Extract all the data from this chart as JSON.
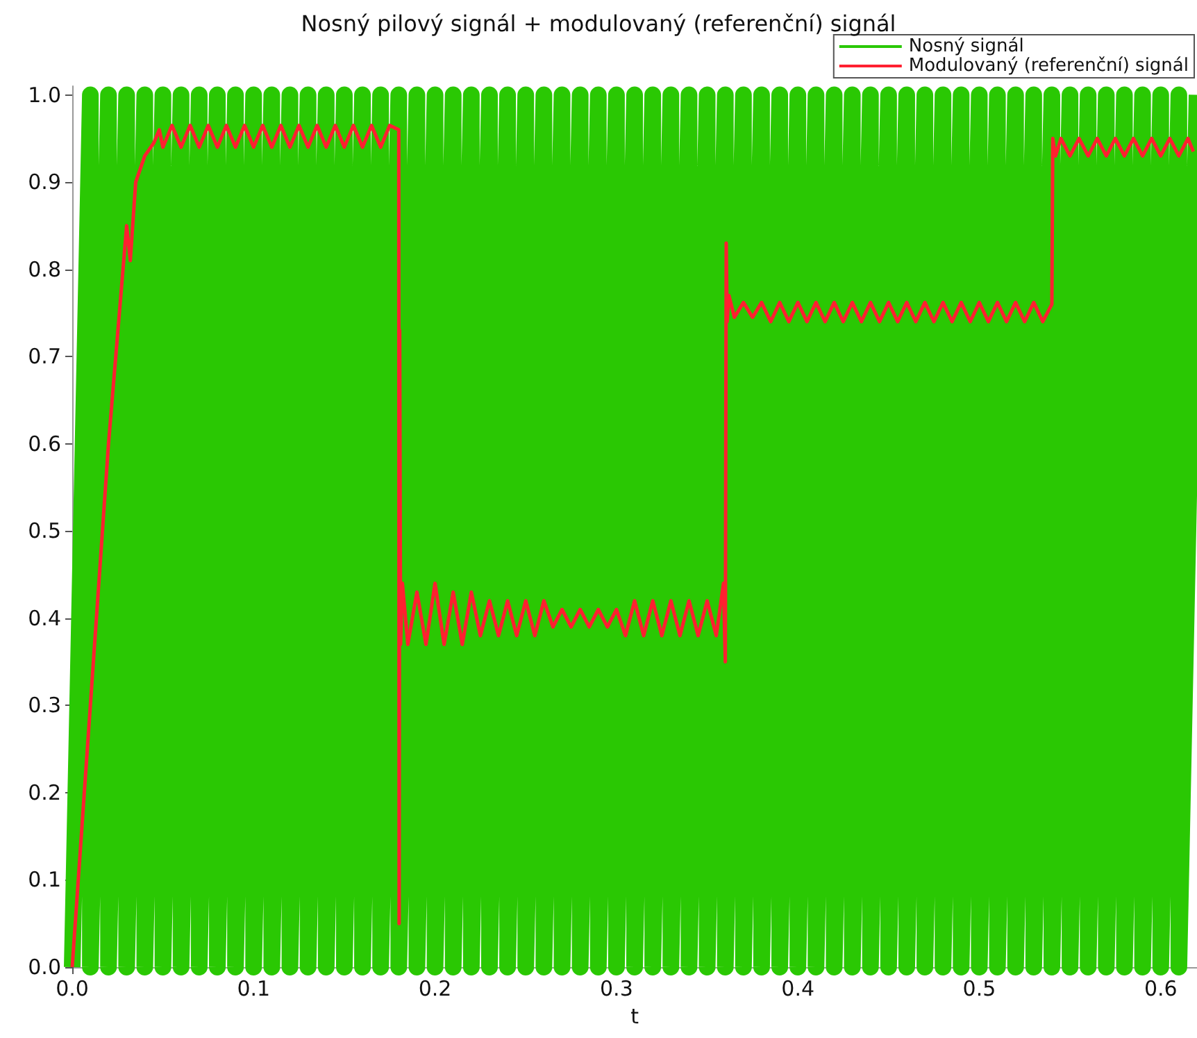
{
  "chart_data": {
    "type": "line",
    "title": "Nosný pilový signál + modulovaný (referenční) signál",
    "xlabel": "t",
    "xlim": [
      0,
      0.62
    ],
    "xticks": [
      {
        "value": 0,
        "label": "0.0"
      },
      0.1,
      0.2,
      0.3,
      0.4,
      0.5,
      0.6
    ],
    "ylim": [
      0,
      1.01
    ],
    "yticks": [
      {
        "value": 0,
        "label": "0.0"
      },
      0.1,
      0.2,
      0.3,
      0.4,
      0.5,
      0.6,
      0.7,
      0.8,
      0.9,
      {
        "value": 1,
        "label": "1.0"
      }
    ],
    "legend": "top right",
    "grid": false,
    "marker": "none",
    "line_style": "solid",
    "series": [
      {
        "name": "Nosný signál",
        "color": "#2ac803",
        "x": [
          0,
          0.01,
          0.01,
          0.02,
          0.02,
          0.03,
          0.03,
          0.04,
          0.04,
          0.05,
          0.05,
          0.06,
          0.06,
          0.07,
          0.07,
          0.08,
          0.08,
          0.09,
          0.09,
          0.1,
          0.1,
          0.11,
          0.11,
          0.12,
          0.12,
          0.13,
          0.13,
          0.14,
          0.14,
          0.15,
          0.15,
          0.16,
          0.16,
          0.17,
          0.17,
          0.18,
          0.18,
          0.19,
          0.19,
          0.2,
          0.2,
          0.21,
          0.21,
          0.22,
          0.22,
          0.23,
          0.23,
          0.24,
          0.24,
          0.25,
          0.25,
          0.26,
          0.26,
          0.27,
          0.27,
          0.28,
          0.28,
          0.29,
          0.29,
          0.3,
          0.3,
          0.31,
          0.31,
          0.32,
          0.32,
          0.33,
          0.33,
          0.34,
          0.34,
          0.35,
          0.35,
          0.36,
          0.36,
          0.37,
          0.37,
          0.38,
          0.38,
          0.39,
          0.39,
          0.4,
          0.4,
          0.41,
          0.41,
          0.42,
          0.42,
          0.43,
          0.43,
          0.44,
          0.44,
          0.45,
          0.45,
          0.46,
          0.46,
          0.47,
          0.47,
          0.48,
          0.48,
          0.49,
          0.49,
          0.5,
          0.5,
          0.51,
          0.51,
          0.52,
          0.52,
          0.53,
          0.53,
          0.54,
          0.54,
          0.55,
          0.55,
          0.56,
          0.56,
          0.57,
          0.57,
          0.58,
          0.58,
          0.59,
          0.59,
          0.6,
          0.6,
          0.61,
          0.61,
          0.62
        ],
        "values": [
          0,
          1,
          0,
          1,
          0,
          1,
          0,
          1,
          0,
          1,
          0,
          1,
          0,
          1,
          0,
          1,
          0,
          1,
          0,
          1,
          0,
          1,
          0,
          1,
          0,
          1,
          0,
          1,
          0,
          1,
          0,
          1,
          0,
          1,
          0,
          1,
          0,
          1,
          0,
          1,
          0,
          1,
          0,
          1,
          0,
          1,
          0,
          1,
          0,
          1,
          0,
          1,
          0,
          1,
          0,
          1,
          0,
          1,
          0,
          1,
          0,
          1,
          0,
          1,
          0,
          1,
          0,
          1,
          0,
          1,
          0,
          1,
          0,
          1,
          0,
          1,
          0,
          1,
          0,
          1,
          0,
          1,
          0,
          1,
          0,
          1,
          0,
          1,
          0,
          1,
          0,
          1,
          0,
          1,
          0,
          1,
          0,
          1,
          0,
          1,
          0,
          1,
          0,
          1,
          0,
          1,
          0,
          1,
          0,
          1,
          0,
          1,
          0,
          1,
          0,
          1,
          0,
          1,
          0,
          1,
          0,
          1,
          0,
          1
        ]
      },
      {
        "name": "Modulovaný (referenční) signál",
        "color": "#ff2030",
        "x": [
          0,
          0.01,
          0.02,
          0.03,
          0.032,
          0.035,
          0.04,
          0.045,
          0.048,
          0.05,
          0.055,
          0.06,
          0.065,
          0.07,
          0.075,
          0.08,
          0.085,
          0.09,
          0.095,
          0.1,
          0.105,
          0.11,
          0.115,
          0.12,
          0.125,
          0.13,
          0.135,
          0.14,
          0.145,
          0.15,
          0.155,
          0.16,
          0.165,
          0.17,
          0.175,
          0.18,
          0.1802,
          0.1805,
          0.181,
          0.182,
          0.185,
          0.19,
          0.195,
          0.2,
          0.205,
          0.21,
          0.215,
          0.22,
          0.225,
          0.23,
          0.235,
          0.24,
          0.245,
          0.25,
          0.255,
          0.26,
          0.265,
          0.27,
          0.275,
          0.28,
          0.285,
          0.29,
          0.295,
          0.3,
          0.305,
          0.31,
          0.315,
          0.32,
          0.325,
          0.33,
          0.335,
          0.34,
          0.345,
          0.35,
          0.355,
          0.359,
          0.36,
          0.3605,
          0.361,
          0.362,
          0.365,
          0.37,
          0.375,
          0.38,
          0.385,
          0.39,
          0.395,
          0.4,
          0.405,
          0.41,
          0.415,
          0.42,
          0.425,
          0.43,
          0.435,
          0.44,
          0.445,
          0.45,
          0.455,
          0.46,
          0.465,
          0.47,
          0.475,
          0.48,
          0.485,
          0.49,
          0.495,
          0.5,
          0.505,
          0.51,
          0.515,
          0.52,
          0.525,
          0.53,
          0.535,
          0.54,
          0.5405,
          0.542,
          0.545,
          0.55,
          0.555,
          0.56,
          0.565,
          0.57,
          0.575,
          0.58,
          0.585,
          0.59,
          0.595,
          0.6,
          0.605,
          0.61,
          0.615,
          0.618
        ],
        "values": [
          0,
          0.3,
          0.6,
          0.85,
          0.81,
          0.9,
          0.93,
          0.945,
          0.96,
          0.94,
          0.965,
          0.94,
          0.965,
          0.94,
          0.965,
          0.94,
          0.965,
          0.94,
          0.965,
          0.94,
          0.965,
          0.94,
          0.965,
          0.94,
          0.965,
          0.94,
          0.965,
          0.94,
          0.965,
          0.94,
          0.965,
          0.94,
          0.965,
          0.94,
          0.965,
          0.96,
          0.05,
          0.73,
          0.37,
          0.44,
          0.37,
          0.43,
          0.37,
          0.44,
          0.37,
          0.43,
          0.37,
          0.43,
          0.38,
          0.42,
          0.38,
          0.42,
          0.38,
          0.42,
          0.38,
          0.42,
          0.39,
          0.41,
          0.39,
          0.41,
          0.39,
          0.41,
          0.39,
          0.41,
          0.38,
          0.42,
          0.38,
          0.42,
          0.38,
          0.42,
          0.38,
          0.42,
          0.38,
          0.42,
          0.38,
          0.44,
          0.35,
          0.83,
          0.74,
          0.77,
          0.745,
          0.762,
          0.745,
          0.762,
          0.74,
          0.762,
          0.74,
          0.762,
          0.74,
          0.762,
          0.74,
          0.762,
          0.74,
          0.762,
          0.74,
          0.762,
          0.74,
          0.762,
          0.74,
          0.762,
          0.74,
          0.762,
          0.74,
          0.762,
          0.74,
          0.762,
          0.74,
          0.762,
          0.74,
          0.762,
          0.74,
          0.762,
          0.74,
          0.762,
          0.74,
          0.76,
          0.95,
          0.93,
          0.95,
          0.93,
          0.95,
          0.93,
          0.95,
          0.93,
          0.95,
          0.93,
          0.95,
          0.93,
          0.95,
          0.93,
          0.95,
          0.93,
          0.95,
          0.935
        ]
      }
    ]
  }
}
